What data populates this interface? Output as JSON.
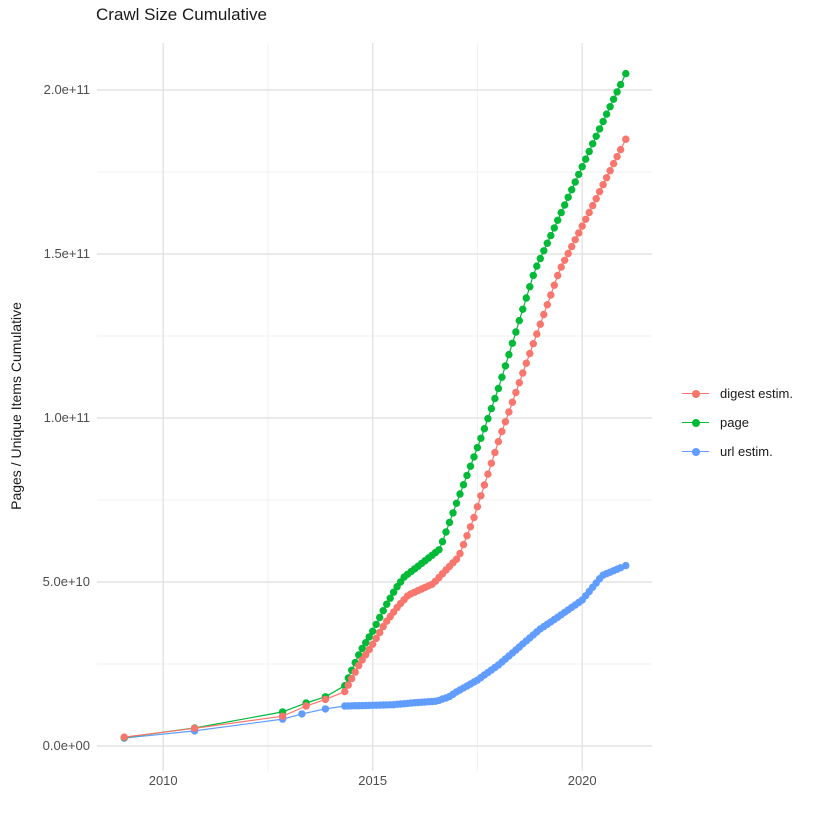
{
  "title": "Crawl Size Cumulative",
  "y_axis_title": "Pages / Unique Items Cumulative",
  "legend": {
    "items": [
      {
        "label": "digest estim.",
        "color": "#F8766D"
      },
      {
        "label": "page",
        "color": "#00BA38"
      },
      {
        "label": "url estim.",
        "color": "#619CFF"
      }
    ]
  },
  "style": {
    "major_grid_color": "#e3e3e3",
    "minor_grid_color": "#f1f1f1",
    "tick_text_color": "#4d4d4d",
    "title_text_color": "#1a1a1a",
    "background": "#ffffff"
  },
  "chart_data": {
    "type": "scatter",
    "subtype": "points-with-connecting-lines",
    "title": "Crawl Size Cumulative",
    "xlabel": "",
    "ylabel": "Pages / Unique Items Cumulative",
    "x_unit": "year",
    "y_unit": "items (value stored in billions, 1 = 1e9)",
    "xlim": [
      2008.4,
      2021.7
    ],
    "ylim_e9": [
      -7.6,
      215
    ],
    "grid": "major and minor, light gray on white",
    "legend_position": "right",
    "axes": {
      "x_ticks": [
        {
          "label": "2010",
          "year": 2010
        },
        {
          "label": "2015",
          "year": 2015
        },
        {
          "label": "2020",
          "year": 2020
        }
      ],
      "x_minor": [
        2012.5,
        2017.5
      ],
      "y_ticks": [
        {
          "label": "0.0e+00",
          "value": 0
        },
        {
          "label": "5.0e+10",
          "value": 50
        },
        {
          "label": "1.0e+11",
          "value": 100
        },
        {
          "label": "1.5e+11",
          "value": 150
        },
        {
          "label": "2.0e+11",
          "value": 200
        }
      ],
      "y_minor": [
        25,
        75,
        125,
        175
      ]
    },
    "sampling": {
      "start_year": 2014.3333,
      "interval_years": 0.08333,
      "monthly_steps": 80,
      "note": "dense bead-like monthly points from mid-2014 to early 2021, interpolated between knots"
    },
    "draw_order": [
      2,
      1,
      0
    ],
    "series": [
      {
        "name": "digest estim.",
        "color": "#F8766D",
        "points_sparse": [
          [
            2009.07,
            2.7
          ],
          [
            2010.75,
            5.4
          ],
          [
            2012.85,
            9.1
          ],
          [
            2013.41,
            12.2
          ],
          [
            2013.87,
            14.2
          ]
        ],
        "knots": [
          [
            2014.33,
            16.5
          ],
          [
            2014.7,
            25.3
          ],
          [
            2015.0,
            31.0
          ],
          [
            2015.3,
            37.5
          ],
          [
            2015.6,
            42.5
          ],
          [
            2015.85,
            46.0
          ],
          [
            2016.1,
            47.5
          ],
          [
            2016.45,
            49.5
          ],
          [
            2016.7,
            53.0
          ],
          [
            2017.05,
            57.6
          ],
          [
            2017.4,
            69.0
          ],
          [
            2018.03,
            94.0
          ],
          [
            2019.46,
            145.0
          ],
          [
            2020.3,
            166.0
          ],
          [
            2021.04,
            185.0
          ]
        ]
      },
      {
        "name": "page",
        "color": "#00BA38",
        "points_sparse": [
          [
            2009.07,
            2.6
          ],
          [
            2010.75,
            5.5
          ],
          [
            2012.85,
            10.4
          ],
          [
            2013.41,
            13.1
          ],
          [
            2013.87,
            15.0
          ]
        ],
        "knots": [
          [
            2014.33,
            18.3
          ],
          [
            2014.7,
            28.7
          ],
          [
            2015.0,
            35.0
          ],
          [
            2015.3,
            42.5
          ],
          [
            2015.55,
            48.0
          ],
          [
            2015.75,
            51.5
          ],
          [
            2016.0,
            54.0
          ],
          [
            2016.35,
            57.5
          ],
          [
            2016.6,
            60.0
          ],
          [
            2017.0,
            74.0
          ],
          [
            2017.63,
            95.4
          ],
          [
            2018.0,
            109.0
          ],
          [
            2018.87,
            145.0
          ],
          [
            2020.3,
            185.0
          ],
          [
            2021.04,
            205.0
          ]
        ]
      },
      {
        "name": "url estim.",
        "color": "#619CFF",
        "points_sparse": [
          [
            2009.07,
            2.4
          ],
          [
            2010.75,
            4.6
          ],
          [
            2012.85,
            8.2
          ],
          [
            2013.31,
            9.8
          ],
          [
            2013.87,
            11.3
          ]
        ],
        "knots": [
          [
            2014.33,
            12.2
          ],
          [
            2015.0,
            12.4
          ],
          [
            2015.5,
            12.6
          ],
          [
            2016.0,
            13.2
          ],
          [
            2016.55,
            13.7
          ],
          [
            2016.63,
            14.2
          ],
          [
            2016.8,
            14.8
          ],
          [
            2017.0,
            16.5
          ],
          [
            2017.5,
            20.1
          ],
          [
            2018.0,
            24.7
          ],
          [
            2019.0,
            35.7
          ],
          [
            2019.5,
            40.0
          ],
          [
            2020.0,
            44.5
          ],
          [
            2020.48,
            52.0
          ],
          [
            2021.04,
            55.0
          ]
        ]
      }
    ]
  }
}
